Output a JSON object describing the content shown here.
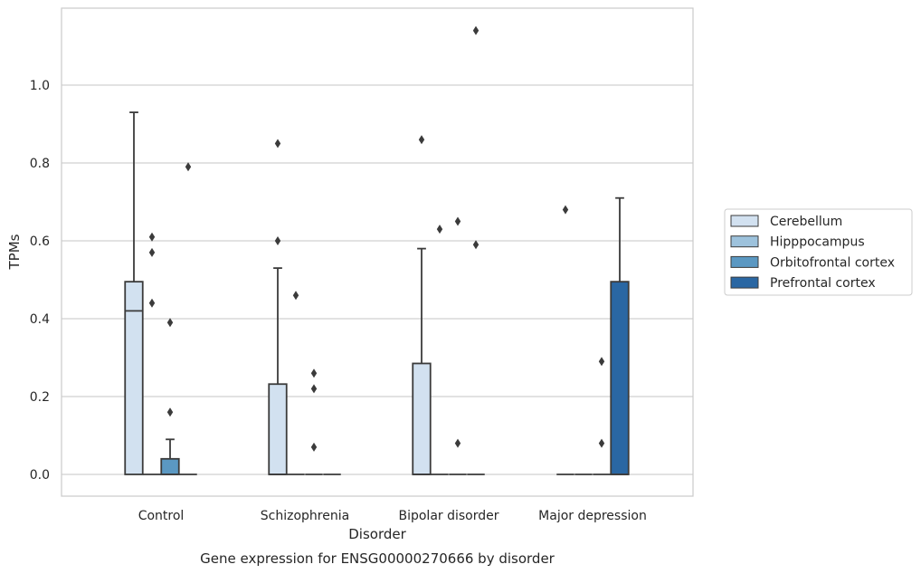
{
  "chart_data": {
    "type": "box",
    "xlabel": "Disorder",
    "ylabel": "TPMs",
    "caption": "Gene expression for ENSG00000270666 by disorder",
    "categories": [
      "Control",
      "Schizophrenia",
      "Bipolar disorder",
      "Major depression"
    ],
    "ylim": [
      -0.055,
      1.2
    ],
    "yticks": [
      "0.0",
      "0.2",
      "0.4",
      "0.6",
      "0.8",
      "1.0"
    ],
    "grid": "horizontal",
    "legend_position": "right",
    "series": [
      {
        "name": "Cerebellum",
        "color": "#d2e1f0",
        "boxes": [
          {
            "q1": 0,
            "median": 0.42,
            "q3": 0.495,
            "whisker_low": 0,
            "whisker_high": 0.93,
            "outliers": []
          },
          {
            "q1": 0,
            "median": 0,
            "q3": 0.232,
            "whisker_low": 0,
            "whisker_high": 0.53,
            "outliers": [
              0.85,
              0.6
            ]
          },
          {
            "q1": 0,
            "median": 0,
            "q3": 0.285,
            "whisker_low": 0,
            "whisker_high": 0.58,
            "outliers": [
              0.86
            ]
          },
          {
            "q1": 0,
            "median": 0,
            "q3": 0,
            "whisker_low": 0,
            "whisker_high": 0,
            "outliers": [
              0.68
            ]
          }
        ]
      },
      {
        "name": "Hipppocampus",
        "color": "#9dc2dc",
        "boxes": [
          {
            "q1": 0,
            "median": 0,
            "q3": 0,
            "whisker_low": 0,
            "whisker_high": 0,
            "outliers": [
              0.61,
              0.57,
              0.44
            ]
          },
          {
            "q1": 0,
            "median": 0,
            "q3": 0,
            "whisker_low": 0,
            "whisker_high": 0,
            "outliers": [
              0.46
            ]
          },
          {
            "q1": 0,
            "median": 0,
            "q3": 0,
            "whisker_low": 0,
            "whisker_high": 0,
            "outliers": [
              0.63
            ]
          },
          {
            "q1": 0,
            "median": 0,
            "q3": 0,
            "whisker_low": 0,
            "whisker_high": 0,
            "outliers": []
          }
        ]
      },
      {
        "name": "Orbitofrontal cortex",
        "color": "#5b98c2",
        "boxes": [
          {
            "q1": 0,
            "median": 0,
            "q3": 0.04,
            "whisker_low": 0,
            "whisker_high": 0.09,
            "outliers": [
              0.39,
              0.16
            ]
          },
          {
            "q1": 0,
            "median": 0,
            "q3": 0,
            "whisker_low": 0,
            "whisker_high": 0,
            "outliers": [
              0.26,
              0.22,
              0.07
            ]
          },
          {
            "q1": 0,
            "median": 0,
            "q3": 0,
            "whisker_low": 0,
            "whisker_high": 0,
            "outliers": [
              0.65,
              0.08
            ]
          },
          {
            "q1": 0,
            "median": 0,
            "q3": 0,
            "whisker_low": 0,
            "whisker_high": 0,
            "outliers": [
              0.29,
              0.08
            ]
          }
        ]
      },
      {
        "name": "Prefrontal cortex",
        "color": "#2a67a3",
        "boxes": [
          {
            "q1": 0,
            "median": 0,
            "q3": 0,
            "whisker_low": 0,
            "whisker_high": 0,
            "outliers": [
              0.79
            ]
          },
          {
            "q1": 0,
            "median": 0,
            "q3": 0,
            "whisker_low": 0,
            "whisker_high": 0,
            "outliers": []
          },
          {
            "q1": 0,
            "median": 0,
            "q3": 0,
            "whisker_low": 0,
            "whisker_high": 0,
            "outliers": [
              1.14,
              0.59
            ]
          },
          {
            "q1": 0,
            "median": 0,
            "q3": 0.495,
            "whisker_low": 0,
            "whisker_high": 0.71,
            "outliers": []
          }
        ]
      }
    ]
  }
}
